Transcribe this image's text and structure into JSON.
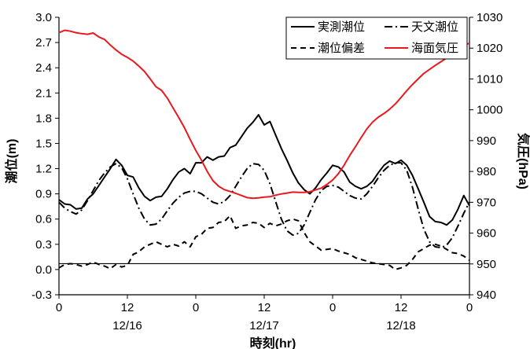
{
  "chart_data": {
    "type": "line",
    "xlabel": "時刻(hr)",
    "ylabel_left": "潮位(m)",
    "ylabel_right": "気圧(hPa)",
    "x_range": [
      0,
      72
    ],
    "ylim_left": [
      -0.3,
      3.0
    ],
    "ylim_right": [
      940,
      1030
    ],
    "x_ticks": [
      {
        "x": 0,
        "label": "0"
      },
      {
        "x": 12,
        "label": "12"
      },
      {
        "x": 24,
        "label": "0"
      },
      {
        "x": 36,
        "label": "12"
      },
      {
        "x": 48,
        "label": "0"
      },
      {
        "x": 60,
        "label": "12"
      },
      {
        "x": 72,
        "label": "0"
      }
    ],
    "date_labels": [
      {
        "x": 12,
        "label": "12/16"
      },
      {
        "x": 36,
        "label": "12/17"
      },
      {
        "x": 60,
        "label": "12/18"
      }
    ],
    "y_ticks_left": [
      "-0.3",
      "0.0",
      "0.3",
      "0.6",
      "0.9",
      "1.2",
      "1.5",
      "1.8",
      "2.1",
      "2.4",
      "2.7",
      "3.0"
    ],
    "y_ticks_right": [
      "940",
      "950",
      "960",
      "970",
      "980",
      "990",
      "1000",
      "1010",
      "1020",
      "1030"
    ],
    "reference_line": {
      "axis": "left",
      "y": 0.07
    },
    "legend_position": "top-right",
    "series": [
      {
        "name": "実測潮位",
        "axis": "left",
        "color": "#000000",
        "dash": "solid",
        "x": [
          0,
          1,
          2,
          3,
          4,
          5,
          6,
          7,
          8,
          9,
          10,
          11,
          12,
          13,
          14,
          15,
          16,
          17,
          18,
          19,
          20,
          21,
          22,
          23,
          24,
          25,
          26,
          27,
          28,
          29,
          30,
          31,
          32,
          33,
          34,
          35,
          36,
          37,
          38,
          39,
          40,
          41,
          42,
          43,
          44,
          45,
          46,
          47,
          48,
          49,
          50,
          51,
          52,
          53,
          54,
          55,
          56,
          57,
          58,
          59,
          60,
          61,
          62,
          63,
          64,
          65,
          66,
          67,
          68,
          69,
          70,
          71,
          72
        ],
        "y": [
          0.83,
          0.78,
          0.77,
          0.72,
          0.73,
          0.84,
          0.9,
          1.0,
          1.1,
          1.2,
          1.31,
          1.24,
          1.12,
          1.1,
          0.97,
          0.87,
          0.82,
          0.86,
          0.87,
          0.96,
          1.07,
          1.16,
          1.2,
          1.14,
          1.27,
          1.27,
          1.34,
          1.3,
          1.34,
          1.35,
          1.45,
          1.48,
          1.58,
          1.68,
          1.75,
          1.84,
          1.72,
          1.76,
          1.6,
          1.44,
          1.3,
          1.15,
          1.03,
          0.95,
          0.9,
          0.97,
          1.07,
          1.15,
          1.24,
          1.22,
          1.16,
          1.04,
          0.99,
          0.96,
          0.99,
          1.05,
          1.15,
          1.24,
          1.29,
          1.26,
          1.3,
          1.24,
          1.12,
          0.96,
          0.8,
          0.63,
          0.57,
          0.56,
          0.53,
          0.59,
          0.72,
          0.88,
          0.76
        ]
      },
      {
        "name": "天文潮位",
        "axis": "left",
        "color": "#000000",
        "dash": "dashdot",
        "x": [
          0,
          1,
          2,
          3,
          4,
          5,
          6,
          7,
          8,
          9,
          10,
          11,
          12,
          13,
          14,
          15,
          16,
          17,
          18,
          19,
          20,
          21,
          22,
          23,
          24,
          25,
          26,
          27,
          28,
          29,
          30,
          31,
          32,
          33,
          34,
          35,
          36,
          37,
          38,
          39,
          40,
          41,
          42,
          43,
          44,
          45,
          46,
          47,
          48,
          49,
          50,
          51,
          52,
          53,
          54,
          55,
          56,
          57,
          58,
          59,
          60,
          61,
          62,
          63,
          64,
          65,
          66,
          67,
          68,
          69,
          70,
          71,
          72
        ],
        "y": [
          0.8,
          0.73,
          0.69,
          0.66,
          0.71,
          0.82,
          0.94,
          1.06,
          1.15,
          1.22,
          1.26,
          1.21,
          1.08,
          0.9,
          0.73,
          0.6,
          0.53,
          0.54,
          0.6,
          0.7,
          0.79,
          0.86,
          0.91,
          0.93,
          0.93,
          0.9,
          0.85,
          0.8,
          0.78,
          0.81,
          0.88,
          0.99,
          1.1,
          1.2,
          1.26,
          1.25,
          1.18,
          1.02,
          0.81,
          0.6,
          0.46,
          0.41,
          0.43,
          0.53,
          0.68,
          0.83,
          0.94,
          0.99,
          1.0,
          0.98,
          0.93,
          0.88,
          0.85,
          0.84,
          0.9,
          0.99,
          1.09,
          1.18,
          1.24,
          1.27,
          1.27,
          1.18,
          0.98,
          0.72,
          0.48,
          0.33,
          0.27,
          0.26,
          0.29,
          0.38,
          0.52,
          0.67,
          0.8
        ]
      },
      {
        "name": "潮位偏差",
        "axis": "left",
        "color": "#000000",
        "dash": "dashed",
        "x": [
          0,
          1,
          2,
          3,
          4,
          5,
          6,
          7,
          8,
          9,
          10,
          11,
          12,
          13,
          14,
          15,
          16,
          17,
          18,
          19,
          20,
          21,
          22,
          23,
          24,
          25,
          26,
          27,
          28,
          29,
          30,
          31,
          32,
          33,
          34,
          35,
          36,
          37,
          38,
          39,
          40,
          41,
          42,
          43,
          44,
          45,
          46,
          47,
          48,
          49,
          50,
          51,
          52,
          53,
          54,
          55,
          56,
          57,
          58,
          59,
          60,
          61,
          62,
          63,
          64,
          65,
          66,
          67,
          68,
          69,
          70,
          71,
          72
        ],
        "y": [
          0.02,
          0.06,
          0.07,
          0.06,
          0.04,
          0.06,
          0.09,
          0.06,
          0.04,
          0.01,
          0.06,
          0.03,
          0.05,
          0.18,
          0.21,
          0.27,
          0.3,
          0.33,
          0.3,
          0.27,
          0.3,
          0.28,
          0.33,
          0.27,
          0.39,
          0.42,
          0.49,
          0.5,
          0.56,
          0.57,
          0.64,
          0.49,
          0.52,
          0.53,
          0.56,
          0.55,
          0.5,
          0.55,
          0.52,
          0.54,
          0.58,
          0.6,
          0.58,
          0.44,
          0.33,
          0.28,
          0.23,
          0.24,
          0.25,
          0.22,
          0.2,
          0.18,
          0.14,
          0.12,
          0.1,
          0.08,
          0.07,
          0.06,
          0.05,
          0.0,
          0.02,
          0.05,
          0.12,
          0.21,
          0.25,
          0.29,
          0.3,
          0.28,
          0.24,
          0.2,
          0.19,
          0.16,
          0.11
        ]
      },
      {
        "name": "海面気圧",
        "axis": "right",
        "color": "#e8191f",
        "dash": "solid",
        "x": [
          0,
          1,
          2,
          3,
          4,
          5,
          6,
          7,
          8,
          9,
          10,
          11,
          12,
          13,
          14,
          15,
          16,
          17,
          18,
          19,
          20,
          21,
          22,
          23,
          24,
          25,
          26,
          27,
          28,
          29,
          30,
          31,
          32,
          33,
          34,
          35,
          36,
          37,
          38,
          39,
          40,
          41,
          42,
          43,
          44,
          45,
          46,
          47,
          48,
          49,
          50,
          51,
          52,
          53,
          54,
          55,
          56,
          57,
          58,
          59,
          60,
          61,
          62,
          63,
          64,
          65,
          66,
          67,
          68,
          69,
          70,
          71,
          72
        ],
        "y": [
          1025.0,
          1025.8,
          1025.5,
          1025.0,
          1024.7,
          1024.5,
          1024.9,
          1023.6,
          1022.8,
          1021.0,
          1019.4,
          1018.0,
          1017.0,
          1015.8,
          1014.2,
          1012.4,
          1010.0,
          1007.5,
          1006.3,
          1003.8,
          1000.6,
          997.5,
          994.2,
          990.4,
          986.8,
          983.6,
          980.0,
          977.0,
          975.2,
          974.1,
          973.5,
          972.9,
          972.2,
          971.5,
          971.3,
          971.4,
          971.7,
          971.8,
          972.3,
          972.7,
          973.0,
          973.3,
          973.2,
          973.2,
          973.4,
          974.0,
          974.6,
          975.8,
          977.2,
          979.3,
          982.0,
          985.2,
          988.0,
          991.0,
          993.8,
          996.0,
          997.6,
          998.8,
          1000.2,
          1001.9,
          1004.0,
          1006.2,
          1008.2,
          1010.0,
          1011.8,
          1013.1,
          1014.4,
          1015.6,
          1016.8,
          1018.3,
          1019.6,
          1020.9,
          1021.6
        ]
      }
    ]
  }
}
